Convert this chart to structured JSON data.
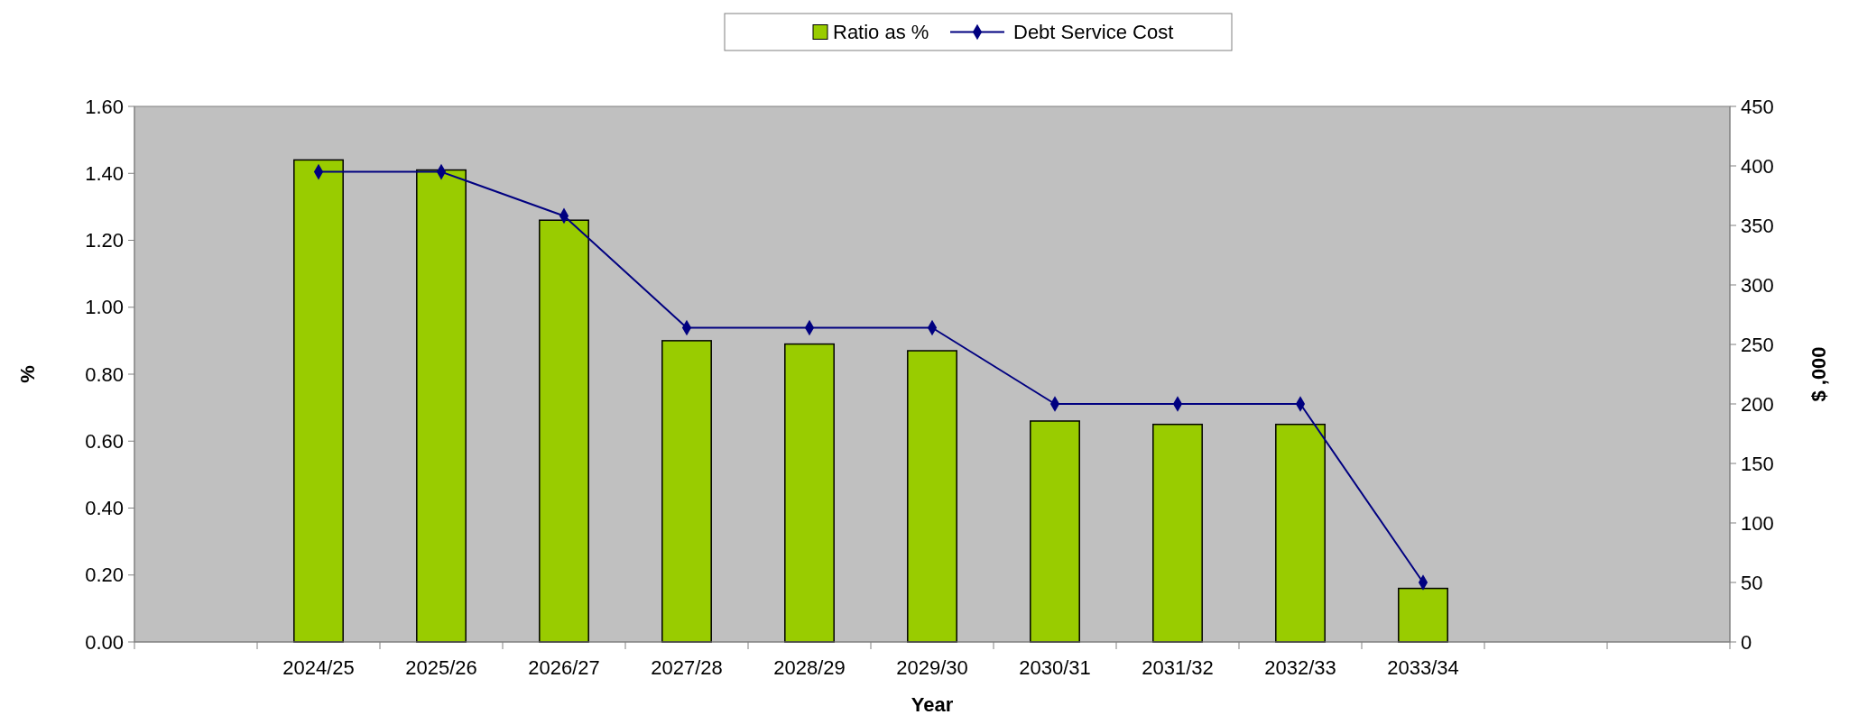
{
  "chart_data": {
    "type": "bar",
    "xlabel": "Year",
    "ylabel": "%",
    "y2label": "$ ,000",
    "categories": [
      null,
      "2024/25",
      "2025/26",
      "2026/27",
      "2027/28",
      "2028/29",
      "2029/30",
      "2030/31",
      "2031/32",
      "2032/33",
      "2033/34",
      null,
      null
    ],
    "series": [
      {
        "name": "Ratio as %",
        "color": "#99cc00",
        "values": [
          null,
          1.44,
          1.41,
          1.26,
          0.9,
          0.89,
          0.87,
          0.66,
          0.65,
          0.65,
          0.16,
          null,
          null
        ]
      },
      {
        "name": "Debt Service Cost",
        "type": "line",
        "axis": "y2",
        "color": "#000080",
        "marker": "diamond",
        "values": [
          null,
          395,
          395,
          358,
          264,
          264,
          264,
          200,
          200,
          200,
          50,
          null,
          null
        ]
      }
    ],
    "ylim": [
      0,
      1.6
    ],
    "yticks": [
      {
        "value": 0,
        "label": "0.00"
      },
      {
        "value": 0.2,
        "label": "0.20"
      },
      {
        "value": 0.4,
        "label": "0.40"
      },
      {
        "value": 0.6,
        "label": "0.60"
      },
      {
        "value": 0.8,
        "label": "0.80"
      },
      {
        "value": 1,
        "label": "1.00"
      },
      {
        "value": 1.2,
        "label": "1.20"
      },
      {
        "value": 1.4,
        "label": "1.40"
      },
      {
        "value": 1.6,
        "label": "1.60"
      }
    ],
    "y2lim": [
      0,
      450
    ],
    "y2ticks": [
      0,
      50,
      100,
      150,
      200,
      250,
      300,
      350,
      400,
      450
    ],
    "legend": "top",
    "grid": false
  }
}
